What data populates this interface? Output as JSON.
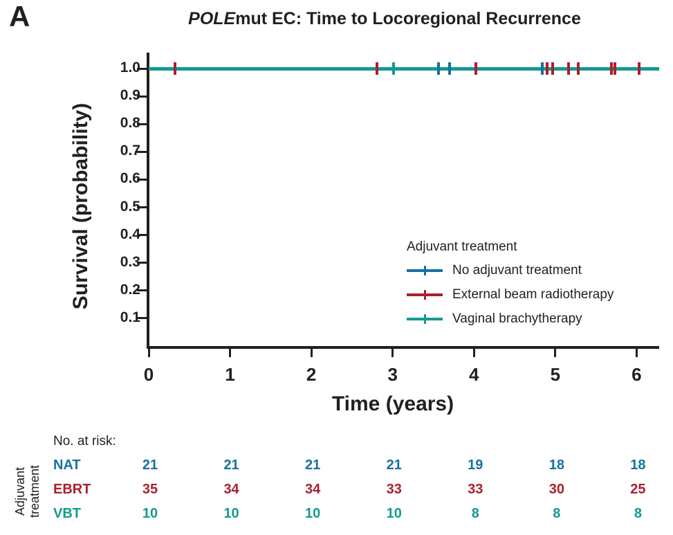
{
  "panel_label": "A",
  "title": {
    "italic": "POLE",
    "rest": "mut EC: Time to Locoregional Recurrence"
  },
  "chart_data": {
    "type": "line",
    "subtype": "kaplan-meier",
    "title": "POLEmut EC: Time to Locoregional Recurrence",
    "xlabel": "Time (years)",
    "ylabel": "Survival (probability)",
    "xlim": [
      0,
      6.3
    ],
    "ylim": [
      0,
      1.05
    ],
    "xticks": [
      0,
      1,
      2,
      3,
      4,
      5,
      6
    ],
    "ytick_labels": [
      "1.0",
      "0.9",
      "0.8",
      "0.7",
      "0.6",
      "0.5",
      "0.4",
      "0.3",
      "0.2",
      "0.1"
    ],
    "grid": false,
    "legend": {
      "title": "Adjuvant treatment",
      "position": "inside-right"
    },
    "series": [
      {
        "key": "NAT",
        "name": "No adjuvant treatment",
        "color": "#17719e",
        "x": [
          0,
          6.28
        ],
        "y": [
          1.0,
          1.0
        ]
      },
      {
        "key": "EBRT",
        "name": "External beam radiotherapy",
        "color": "#a8202e",
        "x": [
          0,
          6.28
        ],
        "y": [
          1.0,
          1.0
        ]
      },
      {
        "key": "VBT",
        "name": "Vaginal brachytherapy",
        "color": "#149a8f",
        "x": [
          0,
          6.28
        ],
        "y": [
          1.0,
          1.0
        ]
      }
    ],
    "censor_marks": [
      {
        "series": "EBRT",
        "time": 0.32
      },
      {
        "series": "EBRT",
        "time": 2.81
      },
      {
        "series": "VBT",
        "time": 3.01
      },
      {
        "series": "NAT",
        "time": 3.56
      },
      {
        "series": "NAT",
        "time": 3.7
      },
      {
        "series": "EBRT",
        "time": 4.02
      },
      {
        "series": "NAT",
        "time": 4.84
      },
      {
        "series": "EBRT",
        "time": 4.9
      },
      {
        "series": "EBRT",
        "time": 4.97
      },
      {
        "series": "EBRT",
        "time": 5.16
      },
      {
        "series": "EBRT",
        "time": 5.28
      },
      {
        "series": "EBRT",
        "time": 5.69
      },
      {
        "series": "EBRT",
        "time": 5.73
      },
      {
        "series": "EBRT",
        "time": 6.03
      }
    ]
  },
  "risk_table": {
    "header": "No. at risk:",
    "axis_label": {
      "line1": "Adjuvant",
      "line2": "treatment"
    },
    "times": [
      0,
      1,
      2,
      3,
      4,
      5,
      6
    ],
    "rows": [
      {
        "label": "NAT",
        "color": "#17719e",
        "values": [
          21,
          21,
          21,
          21,
          19,
          18,
          18
        ]
      },
      {
        "label": "EBRT",
        "color": "#a8202e",
        "values": [
          35,
          34,
          34,
          33,
          33,
          30,
          25
        ]
      },
      {
        "label": "VBT",
        "color": "#149a8f",
        "values": [
          10,
          10,
          10,
          10,
          8,
          8,
          8
        ]
      }
    ]
  }
}
